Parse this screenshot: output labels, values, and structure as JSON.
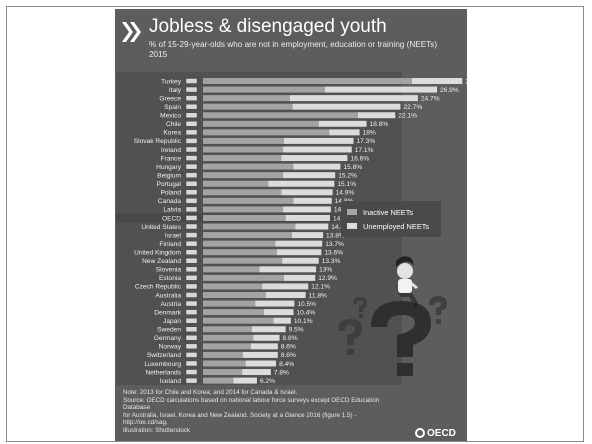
{
  "poster": {
    "title": "Jobless & disengaged youth",
    "subtitle_line1": "% of 15-29-year-olds who are not in employment, education or training (NEETs)",
    "subtitle_line2": "2015",
    "note_line1": "Note: 2013 for Chile and Korea; and 2014 for Canada & Israel.",
    "note_line2": "Source: OECD calculations based on national labour force surveys except OECD Education Database",
    "note_line3": "for Australia, Israel, Korea and New Zealand. Society at a Glance 2016 (figure 1.5) - http://oe.cd/sag.",
    "note_line4": "Illustration: Shutterstock",
    "logo_text": "OECD",
    "colors": {
      "background": "#5d5d5d",
      "inactive": "#a3a3a3",
      "unemployed": "#dcdcdc",
      "text": "#ffffff"
    }
  },
  "chart_data": {
    "type": "bar",
    "orientation": "horizontal",
    "stacked": true,
    "title": "Jobless & disengaged youth",
    "subtitle": "% of 15-29-year-olds who are not in employment, education or training (NEETs) 2015",
    "legend": {
      "position": "right",
      "entries": [
        "Inactive NEETs",
        "Unemployed NEETs"
      ]
    },
    "xlim": [
      0,
      30
    ],
    "categories": [
      "Turkey",
      "Italy",
      "Greece",
      "Spain",
      "Mexico",
      "Chile",
      "Korea",
      "Slovak Republic",
      "Ireland",
      "France",
      "Hungary",
      "Belgium",
      "Portugal",
      "Poland",
      "Canada",
      "Latvia",
      "OECD",
      "United States",
      "Israel",
      "Finland",
      "United Kingdom",
      "New Zealand",
      "Slovenia",
      "Estonia",
      "Czech Republic",
      "Australia",
      "Austria",
      "Denmark",
      "Japan",
      "Sweden",
      "Germany",
      "Norway",
      "Switzerland",
      "Luxembourg",
      "Netherlands",
      "Iceland"
    ],
    "totals": [
      29.8,
      26.9,
      24.7,
      22.7,
      22.1,
      18.8,
      18.0,
      17.3,
      17.1,
      16.6,
      15.8,
      15.2,
      15.1,
      14.9,
      14.8,
      14.7,
      14.6,
      14.4,
      13.8,
      13.7,
      13.6,
      13.3,
      13.0,
      12.9,
      12.1,
      11.8,
      10.5,
      10.4,
      10.1,
      9.5,
      8.8,
      8.6,
      8.6,
      8.4,
      7.8,
      6.2
    ],
    "total_labels": [
      "29.8%",
      "26.9%",
      "24.7%",
      "22.7%",
      "22.1%",
      "18.8%",
      "18%",
      "17.3%",
      "17.1%",
      "16.6%",
      "15.8%",
      "15.2%",
      "15.1%",
      "14.9%",
      "14.8%",
      "14.7%",
      "14.6%",
      "14.4%",
      "13.8%",
      "13.7%",
      "13.6%",
      "13.3%",
      "13%",
      "12.9%",
      "12.1%",
      "11.8%",
      "10.5%",
      "10.4%",
      "10.1%",
      "9.5%",
      "8.8%",
      "8.6%",
      "8.6%",
      "8.4%",
      "7.8%",
      "6.2%"
    ],
    "series": [
      {
        "name": "Inactive NEETs",
        "values": [
          24.0,
          14.0,
          10.0,
          10.3,
          17.8,
          13.3,
          14.5,
          9.3,
          9.2,
          9.0,
          10.4,
          9.2,
          7.5,
          9.0,
          10.4,
          9.2,
          9.5,
          10.6,
          10.2,
          8.3,
          8.5,
          9.1,
          6.5,
          9.3,
          6.8,
          7.2,
          6.0,
          7.0,
          8.1,
          5.6,
          5.8,
          5.5,
          4.6,
          4.9,
          4.5,
          3.5
        ]
      },
      {
        "name": "Unemployed NEETs",
        "values": [
          5.8,
          12.9,
          14.7,
          12.4,
          4.3,
          5.5,
          3.5,
          8.0,
          7.9,
          7.6,
          5.4,
          6.0,
          7.6,
          5.9,
          4.4,
          5.5,
          5.1,
          3.8,
          3.6,
          5.4,
          5.1,
          4.2,
          6.5,
          3.6,
          5.3,
          4.6,
          4.5,
          3.4,
          2.0,
          3.9,
          3.0,
          3.1,
          4.0,
          3.5,
          3.3,
          2.7
        ]
      }
    ]
  }
}
